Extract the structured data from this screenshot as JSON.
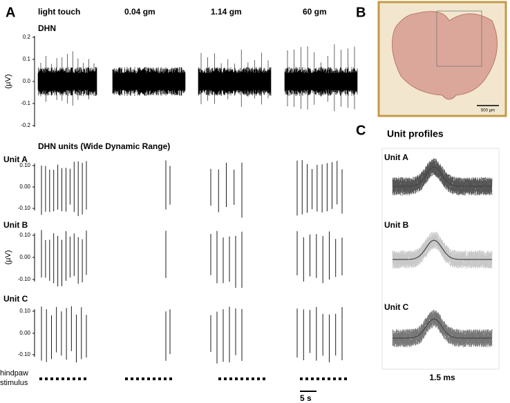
{
  "panel_a": {
    "label": "A",
    "conditions": [
      "light touch",
      "0.04 gm",
      "1.14 gm",
      "60 gm"
    ],
    "dhn": {
      "label": "DHN",
      "ticks": [
        "0.2",
        "0.1",
        "0.0",
        "-0.1",
        "-0.2"
      ],
      "axis_label": "(µV)"
    },
    "units_title": "DHN units (Wide Dynamic Range)",
    "units": [
      {
        "label": "Unit A",
        "ticks": [
          "0.10",
          "0.00",
          "-0.10"
        ]
      },
      {
        "label": "Unit B",
        "ticks": [
          "0.10",
          "0.00",
          "-0.10"
        ]
      },
      {
        "label": "Unit C",
        "ticks": [
          "0.10",
          "0.00",
          "-0.10"
        ]
      }
    ],
    "units_axis_label": "(µV)",
    "stimulus_label": [
      "hindpaw",
      "stimulus"
    ],
    "scale_bar": "5 s"
  },
  "panel_b": {
    "label": "B",
    "scale_bar": "500 µm"
  },
  "panel_c": {
    "label": "C",
    "title": "Unit profiles",
    "units": [
      "Unit A",
      "Unit B",
      "Unit C"
    ],
    "time_scale": "1.5 ms"
  }
}
